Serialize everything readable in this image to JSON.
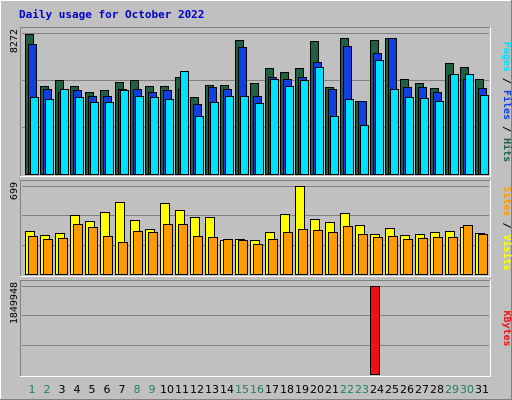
{
  "colors": {
    "background": "#c0c0c0",
    "border_light": "#ffffff",
    "border_dark": "#808080",
    "gridline": "#808080",
    "title": "#0000cc",
    "hits": "#206040",
    "files": "#1040e0",
    "pages": "#00e0ff",
    "visits": "#ffff00",
    "sites": "#ff9a00",
    "kbytes": "#ee1111",
    "weekend_day": "#208060",
    "weekday": "#000000"
  },
  "chart_data": {
    "type": "bar",
    "title": "Daily usage for October 2022",
    "categories": [
      "1",
      "2",
      "3",
      "4",
      "5",
      "6",
      "7",
      "8",
      "9",
      "10",
      "11",
      "12",
      "13",
      "14",
      "15",
      "16",
      "17",
      "18",
      "19",
      "20",
      "21",
      "22",
      "23",
      "24",
      "25",
      "26",
      "27",
      "28",
      "29",
      "30",
      "31"
    ],
    "weekend_days": [
      "1",
      "2",
      "8",
      "9",
      "15",
      "16",
      "22",
      "23",
      "29",
      "30"
    ],
    "panels": [
      {
        "id": "top",
        "max_label": "8272",
        "ylim": [
          0,
          8272
        ],
        "legend": [
          {
            "name": "Hits",
            "color_key": "hits"
          },
          {
            "name": "Files",
            "color_key": "files"
          },
          {
            "name": "Pages",
            "color_key": "pages"
          }
        ],
        "series": [
          {
            "name": "Hits",
            "color_key": "hits",
            "values": [
              8200,
              5150,
              5500,
              5150,
              4800,
              4950,
              5400,
              5500,
              5150,
              5150,
              5700,
              4500,
              5200,
              5200,
              7850,
              5350,
              6200,
              6000,
              6200,
              7800,
              5100,
              7950,
              4300,
              7850,
              8000,
              5600,
              5350,
              5050,
              6500,
              6300,
              5600
            ]
          },
          {
            "name": "Files",
            "color_key": "files",
            "values": [
              7600,
              5000,
              4800,
              4900,
              4600,
              4550,
              5000,
              5000,
              4800,
              4900,
              5000,
              4100,
              5100,
              5000,
              7450,
              4600,
              5700,
              5600,
              5700,
              6550,
              5000,
              7500,
              4300,
              7100,
              8000,
              5100,
              5100,
              4800,
              5800,
              5600,
              5050
            ]
          },
          {
            "name": "Pages",
            "color_key": "pages",
            "values": [
              4500,
              4400,
              5000,
              4500,
              4250,
              4250,
              4900,
              4600,
              4500,
              4400,
              6050,
              3400,
              4200,
              4600,
              4550,
              4150,
              5550,
              5150,
              5500,
              6250,
              3400,
              4400,
              2850,
              6700,
              5000,
              4500,
              4450,
              4300,
              5850,
              5850,
              4650
            ]
          }
        ]
      },
      {
        "id": "middle",
        "max_label": "699",
        "ylim": [
          0,
          699
        ],
        "legend": [
          {
            "name": "Visits",
            "color_key": "visits"
          },
          {
            "name": "Sites",
            "color_key": "sites"
          }
        ],
        "series": [
          {
            "name": "Visits",
            "color_key": "visits",
            "values": [
              340,
              310,
              325,
              465,
              420,
              495,
              570,
              425,
              360,
              565,
              505,
              450,
              450,
              270,
              280,
              270,
              330,
              475,
              699,
              440,
              415,
              485,
              390,
              320,
              365,
              310,
              320,
              330,
              340,
              375,
              325
            ]
          },
          {
            "name": "Sites",
            "color_key": "sites",
            "values": [
              305,
              275,
              285,
              400,
              370,
              305,
              255,
              345,
              335,
              395,
              400,
              305,
              290,
              275,
              270,
              240,
              280,
              335,
              355,
              350,
              330,
              385,
              315,
              295,
              300,
              280,
              285,
              290,
              295,
              390,
              315
            ]
          }
        ]
      },
      {
        "id": "bottom",
        "max_label": "1849948",
        "ylim": [
          0,
          1849948
        ],
        "legend": [
          {
            "name": "KBytes",
            "color_key": "kbytes"
          }
        ],
        "series": [
          {
            "name": "KBytes",
            "color_key": "kbytes",
            "values": [
              780,
              720,
              640,
              620,
              640,
              480,
              610,
              690,
              660,
              560,
              1060,
              620,
              490,
              490,
              700,
              400,
              800,
              620,
              730,
              800,
              660,
              820,
              510,
              1849948,
              720,
              950,
              650,
              680,
              730,
              800,
              700
            ]
          }
        ]
      }
    ]
  }
}
